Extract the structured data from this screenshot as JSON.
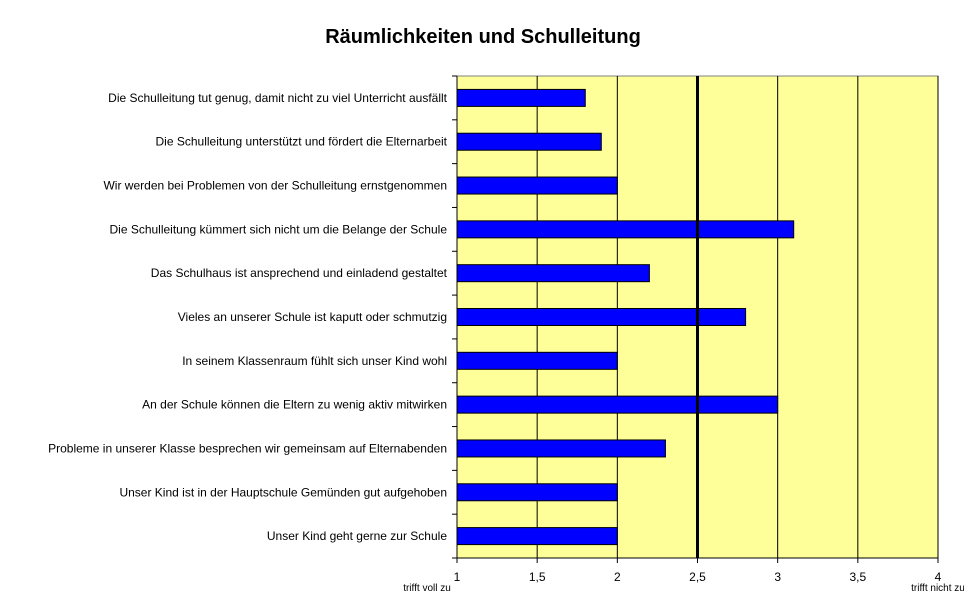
{
  "chart_data": {
    "type": "bar",
    "orientation": "horizontal",
    "title": "Räumlichkeiten und Schulleitung",
    "categories": [
      "Die Schulleitung tut genug, damit nicht zu viel Unterricht ausfällt",
      "Die Schulleitung unterstützt und fördert die Elternarbeit",
      "Wir werden bei Problemen von der Schulleitung ernstgenommen",
      "Die Schulleitung kümmert sich nicht um die Belange der Schule",
      "Das Schulhaus ist ansprechend und einladend gestaltet",
      "Vieles an unserer Schule ist kaputt oder schmutzig",
      "In seinem Klassenraum fühlt sich unser Kind wohl",
      "An der Schule können die Eltern zu wenig aktiv mitwirken",
      "Probleme in unserer Klasse besprechen wir gemeinsam auf Elternabenden",
      "Unser Kind ist in der Hauptschule Gemünden gut aufgehoben",
      "Unser Kind geht gerne zur Schule"
    ],
    "values": [
      1.8,
      1.9,
      2.0,
      3.1,
      2.2,
      2.8,
      2.0,
      3.0,
      2.3,
      2.0,
      2.0
    ],
    "xlim": [
      1,
      4
    ],
    "xticks": [
      1,
      1.5,
      2,
      2.5,
      3,
      3.5,
      4
    ],
    "xtick_labels": [
      "1",
      "1,5",
      "2",
      "2,5",
      "3",
      "3,5",
      "4"
    ],
    "x_min_label": "trifft voll zu",
    "x_max_label": "trifft nicht zu",
    "reference_line": 2.5,
    "grid": true,
    "colors": {
      "bar": "#0000ff",
      "plot_background": "#ffff99",
      "grid": "#000000",
      "reference_line": "#000000"
    }
  }
}
